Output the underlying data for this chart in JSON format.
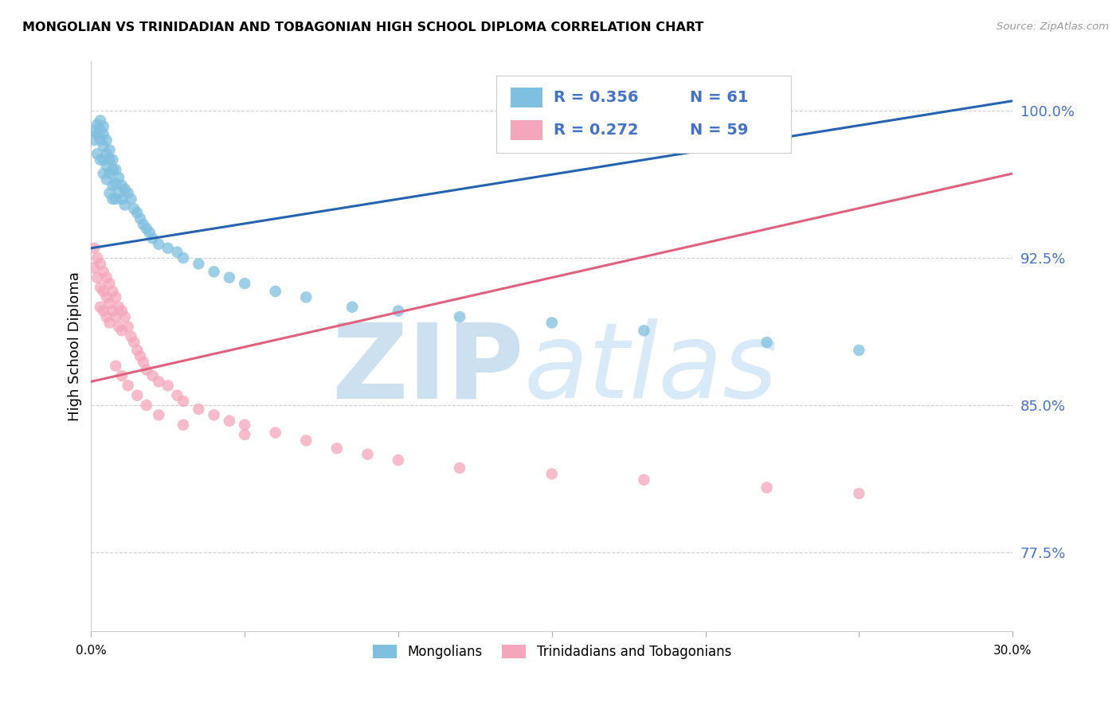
{
  "title": "MONGOLIAN VS TRINIDADIAN AND TOBAGONIAN HIGH SCHOOL DIPLOMA CORRELATION CHART",
  "source": "Source: ZipAtlas.com",
  "ylabel": "High School Diploma",
  "ytick_labels": [
    "100.0%",
    "92.5%",
    "85.0%",
    "77.5%"
  ],
  "ytick_values": [
    1.0,
    0.925,
    0.85,
    0.775
  ],
  "xlim": [
    0.0,
    0.3
  ],
  "ylim": [
    0.735,
    1.025
  ],
  "blue_color": "#7fbfdf",
  "pink_color": "#f4a6bc",
  "line_blue": "#2563b0",
  "line_pink": "#e06080",
  "legend_label1": "Mongolians",
  "legend_label2": "Trinidadians and Tobagonians",
  "blue_trend_x": [
    0.0,
    0.3
  ],
  "blue_trend_y": [
    0.93,
    1.005
  ],
  "pink_trend_x": [
    0.0,
    0.3
  ],
  "pink_trend_y": [
    0.862,
    0.968
  ],
  "blue_x": [
    0.001,
    0.001,
    0.002,
    0.002,
    0.002,
    0.003,
    0.003,
    0.003,
    0.003,
    0.004,
    0.004,
    0.004,
    0.004,
    0.004,
    0.005,
    0.005,
    0.005,
    0.005,
    0.006,
    0.006,
    0.006,
    0.006,
    0.007,
    0.007,
    0.007,
    0.007,
    0.008,
    0.008,
    0.008,
    0.009,
    0.009,
    0.01,
    0.01,
    0.011,
    0.011,
    0.012,
    0.013,
    0.014,
    0.015,
    0.016,
    0.017,
    0.018,
    0.019,
    0.02,
    0.022,
    0.025,
    0.028,
    0.03,
    0.035,
    0.04,
    0.045,
    0.05,
    0.06,
    0.07,
    0.085,
    0.1,
    0.12,
    0.15,
    0.18,
    0.22,
    0.25
  ],
  "blue_y": [
    0.99,
    0.985,
    0.993,
    0.988,
    0.978,
    0.995,
    0.99,
    0.985,
    0.975,
    0.992,
    0.988,
    0.982,
    0.975,
    0.968,
    0.985,
    0.978,
    0.972,
    0.965,
    0.98,
    0.975,
    0.968,
    0.958,
    0.975,
    0.97,
    0.962,
    0.955,
    0.97,
    0.963,
    0.955,
    0.966,
    0.958,
    0.962,
    0.955,
    0.96,
    0.952,
    0.958,
    0.955,
    0.95,
    0.948,
    0.945,
    0.942,
    0.94,
    0.938,
    0.935,
    0.932,
    0.93,
    0.928,
    0.925,
    0.922,
    0.918,
    0.915,
    0.912,
    0.908,
    0.905,
    0.9,
    0.898,
    0.895,
    0.892,
    0.888,
    0.882,
    0.878
  ],
  "pink_x": [
    0.001,
    0.001,
    0.002,
    0.002,
    0.003,
    0.003,
    0.003,
    0.004,
    0.004,
    0.004,
    0.005,
    0.005,
    0.005,
    0.006,
    0.006,
    0.006,
    0.007,
    0.007,
    0.008,
    0.008,
    0.009,
    0.009,
    0.01,
    0.01,
    0.011,
    0.012,
    0.013,
    0.014,
    0.015,
    0.016,
    0.017,
    0.018,
    0.02,
    0.022,
    0.025,
    0.028,
    0.03,
    0.035,
    0.04,
    0.045,
    0.05,
    0.06,
    0.07,
    0.08,
    0.09,
    0.1,
    0.12,
    0.15,
    0.18,
    0.22,
    0.25,
    0.008,
    0.01,
    0.012,
    0.015,
    0.018,
    0.022,
    0.03,
    0.05
  ],
  "pink_y": [
    0.93,
    0.92,
    0.925,
    0.915,
    0.922,
    0.91,
    0.9,
    0.918,
    0.908,
    0.898,
    0.915,
    0.905,
    0.895,
    0.912,
    0.902,
    0.892,
    0.908,
    0.898,
    0.905,
    0.895,
    0.9,
    0.89,
    0.898,
    0.888,
    0.895,
    0.89,
    0.885,
    0.882,
    0.878,
    0.875,
    0.872,
    0.868,
    0.865,
    0.862,
    0.86,
    0.855,
    0.852,
    0.848,
    0.845,
    0.842,
    0.84,
    0.836,
    0.832,
    0.828,
    0.825,
    0.822,
    0.818,
    0.815,
    0.812,
    0.808,
    0.805,
    0.87,
    0.865,
    0.86,
    0.855,
    0.85,
    0.845,
    0.84,
    0.835
  ]
}
